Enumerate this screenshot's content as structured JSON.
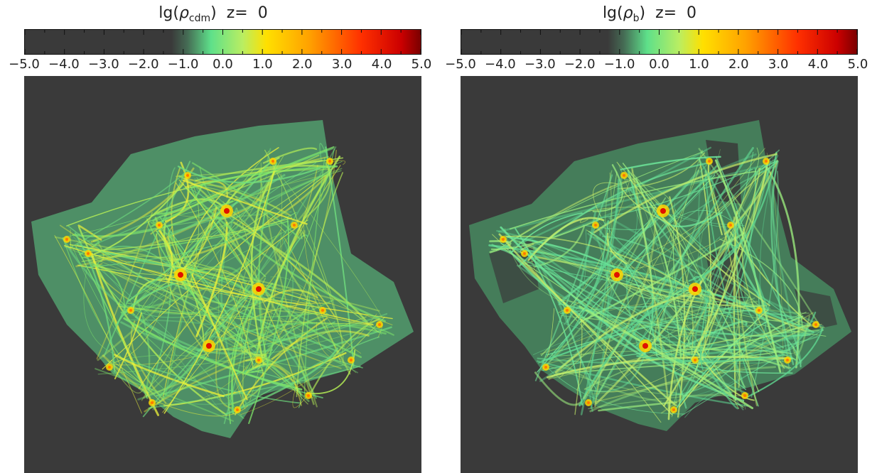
{
  "panels": [
    {
      "id": "cdm",
      "title": {
        "prefix": "lg(",
        "symbol": "ρ",
        "subscript": "cdm",
        "suffix": ")",
        "redshift_label": "z=",
        "redshift_value": "0"
      },
      "colorbar_ticks": [
        "−5.0",
        "−4.0",
        "−3.0",
        "−2.0",
        "−1.0",
        "0.0",
        "1.0",
        "2.0",
        "3.0",
        "4.0",
        "5.0"
      ],
      "colorbar_range": [
        -5,
        5
      ]
    },
    {
      "id": "baryon",
      "title": {
        "prefix": "lg(",
        "symbol": "ρ",
        "subscript": "b",
        "suffix": ")",
        "redshift_label": "z=",
        "redshift_value": "0"
      },
      "colorbar_ticks": [
        "−5.0",
        "−4.0",
        "−3.0",
        "−2.0",
        "−1.0",
        "0.0",
        "1.0",
        "2.0",
        "3.0",
        "4.0",
        "5.0"
      ],
      "colorbar_range": [
        -5,
        5
      ]
    }
  ],
  "colors": {
    "background_map": "#3a3a3a",
    "colormap": [
      "#3a3a3a",
      "#3a3a3a",
      "#3c3c3c",
      "#40564a",
      "#5ee08a",
      "#d8f25a",
      "#ffd400",
      "#ff8800",
      "#ff2a00",
      "#b80000",
      "#800000"
    ]
  }
}
